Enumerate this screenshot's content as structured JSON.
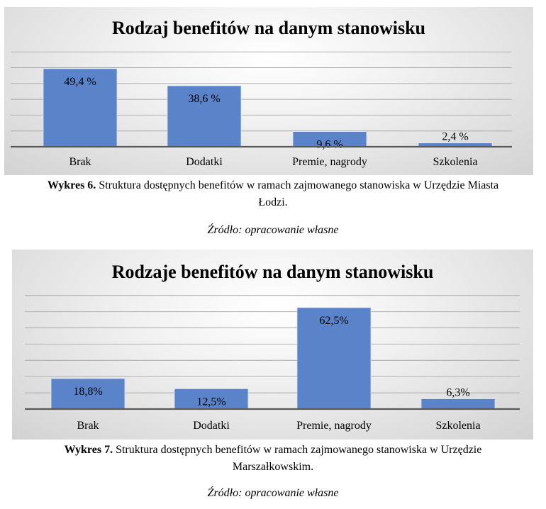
{
  "chart_data": [
    {
      "type": "bar",
      "title": "Rodzaj benefitów na danym stanowisku",
      "categories": [
        "Brak",
        "Dodatki",
        "Premie, nagrody",
        "Szkolenia"
      ],
      "values": [
        49.4,
        38.6,
        9.6,
        2.4
      ],
      "labels": [
        "49,4 %",
        "38,6 %",
        "9,6 %",
        "2,4 %"
      ],
      "ylim": [
        0,
        60
      ],
      "grid": true,
      "color": "#5b83c9"
    },
    {
      "type": "bar",
      "title": "Rodzaje benefitów na danym stanowisku",
      "categories": [
        "Brak",
        "Dodatki",
        "Premie, nagrody",
        "Szkolenia"
      ],
      "values": [
        18.8,
        12.5,
        62.5,
        6.3
      ],
      "labels": [
        "18,8%",
        "12,5%",
        "62,5%",
        "6,3%"
      ],
      "ylim": [
        0,
        70
      ],
      "grid": true,
      "color": "#5b83c9"
    }
  ],
  "captions": [
    {
      "bold": "Wykres 6.",
      "line1": " Struktura  dostępnych benefitów w ramach zajmowanego stanowiska w Urzędzie Miasta",
      "line2": "Łodzi.",
      "source": "Źródło: opracowanie własne"
    },
    {
      "bold": "Wykres 7.",
      "line1": " Struktura  dostępnych benefitów w ramach zajmowanego stanowiska w Urzędzie",
      "line2": "Marszałkowskim.",
      "source": "Źródło: opracowanie własne"
    }
  ]
}
